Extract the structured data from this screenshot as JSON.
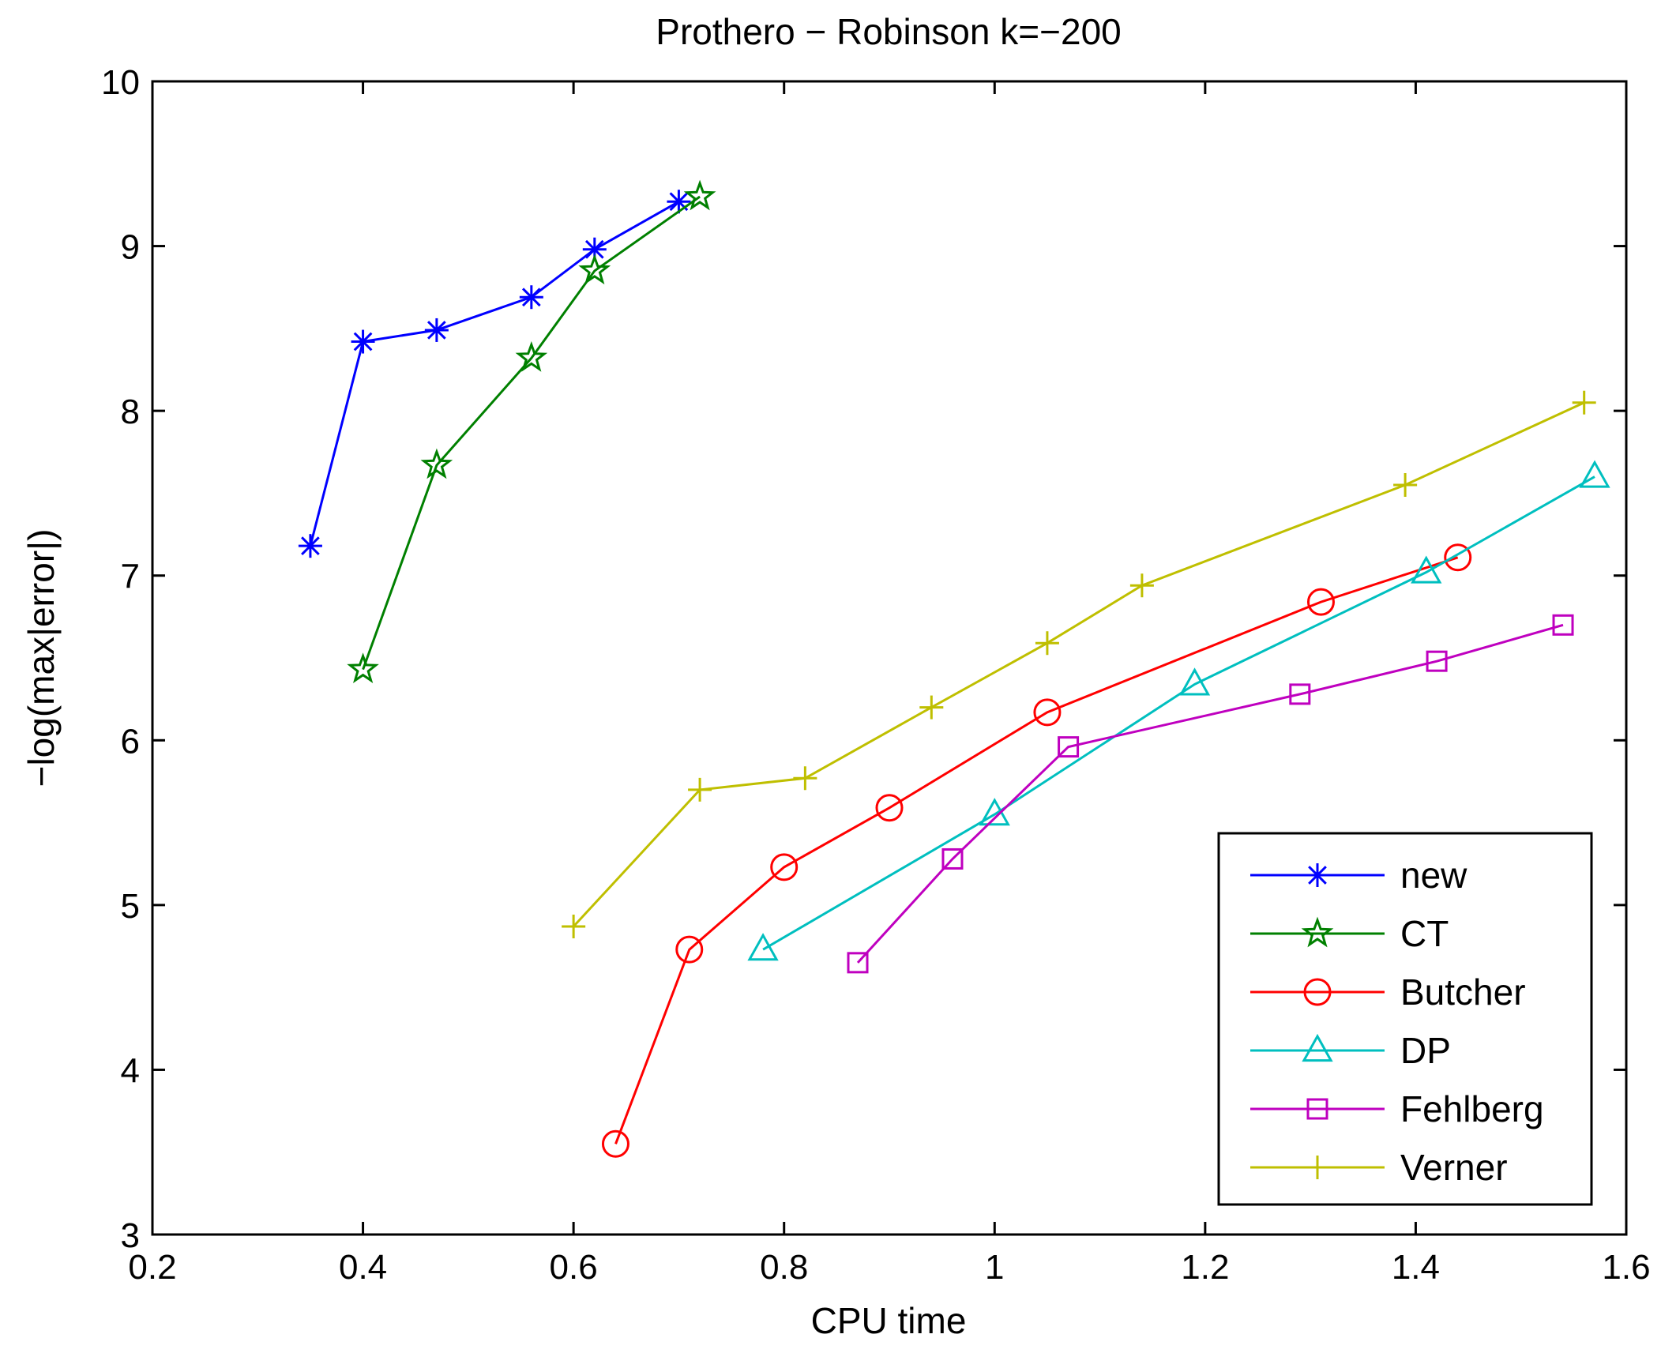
{
  "chart_data": {
    "type": "line",
    "title": "Prothero − Robinson k=−200",
    "xlabel": "CPU time",
    "ylabel": "−log(max|error|)",
    "xlim": [
      0.2,
      1.6
    ],
    "ylim": [
      3,
      10
    ],
    "xticks": [
      0.2,
      0.4,
      0.6,
      0.8,
      1,
      1.2,
      1.4,
      1.6
    ],
    "xtick_labels": [
      "0.2",
      "0.4",
      "0.6",
      "0.8",
      "1",
      "1.2",
      "1.4",
      "1.6"
    ],
    "yticks": [
      3,
      4,
      5,
      6,
      7,
      8,
      9,
      10
    ],
    "ytick_labels": [
      "3",
      "4",
      "5",
      "6",
      "7",
      "8",
      "9",
      "10"
    ],
    "grid": false,
    "legend_position": "bottom-right",
    "series": [
      {
        "name": "new",
        "color": "#0000ff",
        "marker": "asterisk",
        "x": [
          0.35,
          0.4,
          0.47,
          0.56,
          0.62,
          0.7
        ],
        "y": [
          7.18,
          8.42,
          8.49,
          8.69,
          8.98,
          9.27
        ]
      },
      {
        "name": "CT",
        "color": "#008000",
        "marker": "star",
        "x": [
          0.4,
          0.47,
          0.56,
          0.62,
          0.72
        ],
        "y": [
          6.43,
          7.67,
          8.32,
          8.85,
          9.3
        ]
      },
      {
        "name": "Butcher",
        "color": "#ff0000",
        "marker": "circle",
        "x": [
          0.64,
          0.71,
          0.8,
          0.9,
          1.05,
          1.31,
          1.44
        ],
        "y": [
          3.55,
          4.73,
          5.23,
          5.59,
          6.17,
          6.84,
          7.11
        ]
      },
      {
        "name": "DP",
        "color": "#00bfbf",
        "marker": "triangle",
        "x": [
          0.78,
          1.0,
          1.19,
          1.41,
          1.57
        ],
        "y": [
          4.73,
          5.55,
          6.34,
          7.02,
          7.6
        ]
      },
      {
        "name": "Fehlberg",
        "color": "#bf00bf",
        "marker": "square",
        "x": [
          0.87,
          0.96,
          1.07,
          1.29,
          1.42,
          1.54
        ],
        "y": [
          4.65,
          5.28,
          5.96,
          6.28,
          6.48,
          6.7
        ]
      },
      {
        "name": "Verner",
        "color": "#bfbf00",
        "marker": "plus",
        "x": [
          0.6,
          0.72,
          0.82,
          0.94,
          1.05,
          1.14,
          1.39,
          1.56
        ],
        "y": [
          4.87,
          5.7,
          5.77,
          6.2,
          6.59,
          6.94,
          7.55,
          8.05
        ]
      }
    ]
  }
}
